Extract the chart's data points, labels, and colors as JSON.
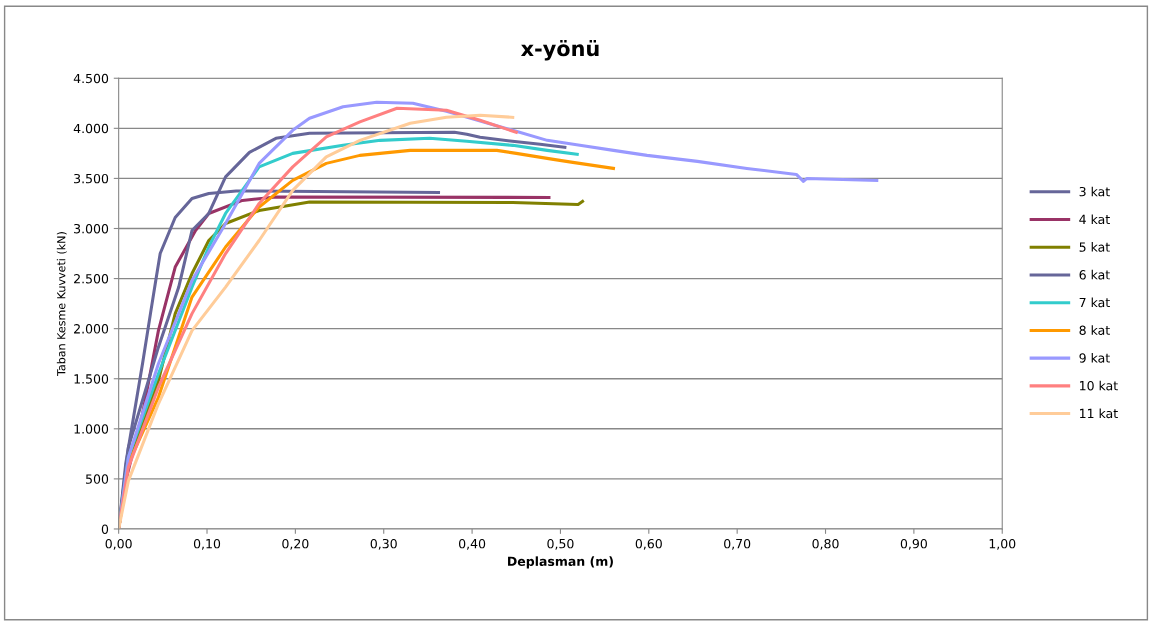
{
  "chart_data": {
    "type": "line",
    "title": "x-yönü",
    "xlabel": "Deplasman (m)",
    "ylabel": "Taban Kesme Kuvveti (kN)",
    "xlim": [
      0,
      1
    ],
    "ylim": [
      0,
      4500
    ],
    "xticks": [
      {
        "value": 0,
        "label": "0,00"
      },
      {
        "value": 0.1,
        "label": "0,10"
      },
      {
        "value": 0.2,
        "label": "0,20"
      },
      {
        "value": 0.3,
        "label": "0,30"
      },
      {
        "value": 0.4,
        "label": "0,40"
      },
      {
        "value": 0.5,
        "label": "0,50"
      },
      {
        "value": 0.6,
        "label": "0,60"
      },
      {
        "value": 0.7,
        "label": "0,70"
      },
      {
        "value": 0.8,
        "label": "0,80"
      },
      {
        "value": 0.9,
        "label": "0,90"
      },
      {
        "value": 1,
        "label": "1,00"
      }
    ],
    "yticks": [
      0,
      500,
      {
        "value": 1000,
        "label": "1.000"
      },
      {
        "value": 1500,
        "label": "1.500"
      },
      {
        "value": 2000,
        "label": "2.000"
      },
      {
        "value": 2500,
        "label": "2.500"
      },
      {
        "value": 3000,
        "label": "3.000"
      },
      {
        "value": 3500,
        "label": "3.500"
      },
      {
        "value": 4000,
        "label": "4.000"
      },
      {
        "value": 4500,
        "label": "4.500"
      }
    ],
    "grid": "y",
    "legend": "right",
    "marker": "none",
    "line_style": "solid",
    "series": [
      {
        "name": "3 kat",
        "color": "#666699",
        "x": [
          0,
          0.008,
          0.027,
          0.036,
          0.042,
          0.047,
          0.064,
          0.083,
          0.102,
          0.133,
          0.362
        ],
        "values": [
          0,
          650,
          1650,
          2150,
          2480,
          2750,
          3110,
          3300,
          3350,
          3375,
          3360
        ]
      },
      {
        "name": "4 kat",
        "color": "#993366",
        "x": [
          0,
          0.008,
          0.027,
          0.045,
          0.064,
          0.087,
          0.102,
          0.14,
          0.178,
          0.487
        ],
        "values": [
          0,
          480,
          1150,
          1980,
          2615,
          2980,
          3150,
          3280,
          3315,
          3310
        ]
      },
      {
        "name": "5 kat",
        "color": "#808000",
        "x": [
          0,
          0.011,
          0.045,
          0.064,
          0.083,
          0.102,
          0.121,
          0.159,
          0.216,
          0.446,
          0.52,
          0.525
        ],
        "values": [
          0,
          650,
          1480,
          2150,
          2550,
          2880,
          3050,
          3180,
          3265,
          3260,
          3240,
          3270
        ]
      },
      {
        "name": "6 kat",
        "color": "#666699",
        "x": [
          0,
          0.011,
          0.045,
          0.068,
          0.083,
          0.102,
          0.121,
          0.148,
          0.178,
          0.216,
          0.38,
          0.394,
          0.409,
          0.443,
          0.477,
          0.505
        ],
        "values": [
          0,
          815,
          1815,
          2415,
          2980,
          3150,
          3515,
          3760,
          3900,
          3950,
          3960,
          3940,
          3910,
          3873,
          3840,
          3810
        ]
      },
      {
        "name": "7 kat",
        "color": "#33cccc",
        "x": [
          0,
          0.011,
          0.045,
          0.083,
          0.102,
          0.121,
          0.159,
          0.197,
          0.254,
          0.296,
          0.352,
          0.394,
          0.446,
          0.485,
          0.519
        ],
        "values": [
          0,
          715,
          1550,
          2415,
          2815,
          3150,
          3615,
          3750,
          3830,
          3880,
          3900,
          3870,
          3830,
          3780,
          3740
        ]
      },
      {
        "name": "8 kat",
        "color": "#ff9900",
        "x": [
          0,
          0.011,
          0.045,
          0.064,
          0.083,
          0.121,
          0.159,
          0.197,
          0.235,
          0.273,
          0.33,
          0.428,
          0.45,
          0.492,
          0.514,
          0.56
        ],
        "values": [
          0,
          650,
          1315,
          1815,
          2315,
          2815,
          3215,
          3480,
          3650,
          3730,
          3780,
          3780,
          3750,
          3690,
          3660,
          3600
        ]
      },
      {
        "name": "9 kat",
        "color": "#9999ff",
        "x": [
          0,
          0.011,
          0.045,
          0.083,
          0.121,
          0.159,
          0.197,
          0.216,
          0.254,
          0.292,
          0.333,
          0.371,
          0.446,
          0.485,
          0.522,
          0.56,
          0.598,
          0.655,
          0.711,
          0.767,
          0.775,
          0.779,
          0.858
        ],
        "values": [
          0,
          715,
          1650,
          2480,
          3050,
          3650,
          3980,
          4100,
          4215,
          4260,
          4250,
          4170,
          3980,
          3880,
          3830,
          3780,
          3730,
          3670,
          3600,
          3540,
          3470,
          3500,
          3480
        ]
      },
      {
        "name": "10 kat",
        "color": "#ff8080",
        "x": [
          0,
          0.011,
          0.045,
          0.083,
          0.121,
          0.159,
          0.197,
          0.235,
          0.273,
          0.315,
          0.371,
          0.409,
          0.45
        ],
        "values": [
          0,
          615,
          1415,
          2150,
          2750,
          3250,
          3615,
          3915,
          4065,
          4200,
          4180,
          4080,
          3960
        ]
      },
      {
        "name": "11 kat",
        "color": "#ffcc99",
        "x": [
          0,
          0.011,
          0.045,
          0.083,
          0.121,
          0.159,
          0.197,
          0.235,
          0.273,
          0.33,
          0.371,
          0.409,
          0.446
        ],
        "values": [
          0,
          480,
          1250,
          1980,
          2415,
          2880,
          3380,
          3715,
          3880,
          4050,
          4110,
          4130,
          4110
        ]
      }
    ]
  }
}
